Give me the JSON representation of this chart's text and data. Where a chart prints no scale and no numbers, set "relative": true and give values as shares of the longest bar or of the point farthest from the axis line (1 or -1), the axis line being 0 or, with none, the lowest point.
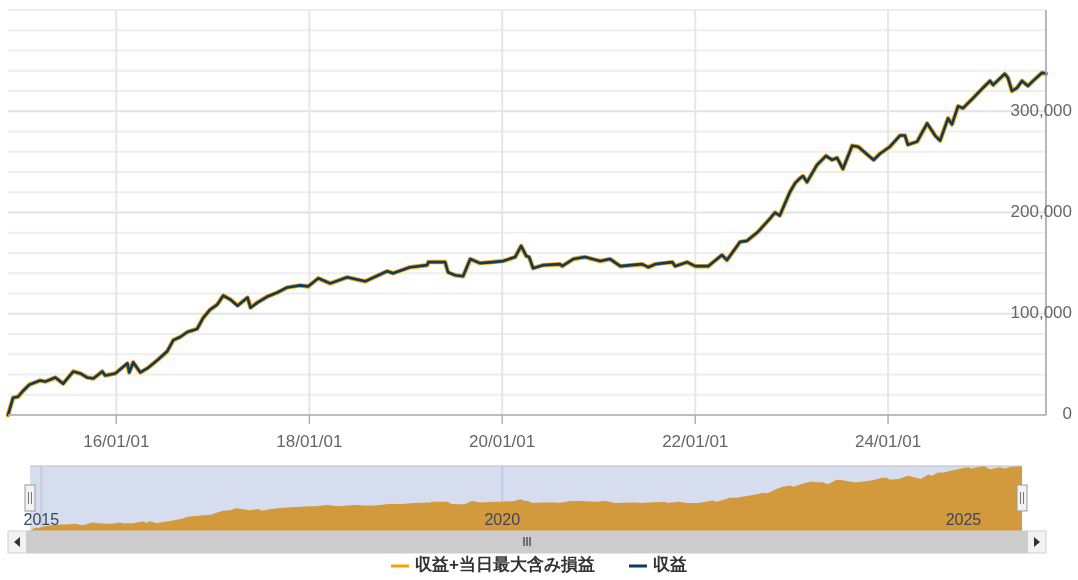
{
  "chart_data": [
    {
      "type": "line",
      "xlim": [
        "2014-11-17",
        "2025-08-21"
      ],
      "ylim": [
        0,
        400000
      ],
      "xticks": [
        {
          "value": "2016-01-01",
          "label": "16/01/01"
        },
        {
          "value": "2018-01-01",
          "label": "18/01/01"
        },
        {
          "value": "2020-01-01",
          "label": "20/01/01"
        },
        {
          "value": "2022-01-01",
          "label": "22/01/01"
        },
        {
          "value": "2024-01-01",
          "label": "24/01/01"
        }
      ],
      "yticks": [
        {
          "value": 0,
          "label": "0"
        },
        {
          "value": 20000,
          "label": null
        },
        {
          "value": 40000,
          "label": null
        },
        {
          "value": 60000,
          "label": null
        },
        {
          "value": 80000,
          "label": null
        },
        {
          "value": 100000,
          "label": "100,000"
        },
        {
          "value": 120000,
          "label": null
        },
        {
          "value": 140000,
          "label": null
        },
        {
          "value": 160000,
          "label": null
        },
        {
          "value": 180000,
          "label": null
        },
        {
          "value": 200000,
          "label": "200,000"
        },
        {
          "value": 220000,
          "label": null
        },
        {
          "value": 240000,
          "label": null
        },
        {
          "value": 260000,
          "label": null
        },
        {
          "value": 280000,
          "label": null
        },
        {
          "value": 300000,
          "label": "300,000"
        },
        {
          "value": 320000,
          "label": null
        },
        {
          "value": 340000,
          "label": null
        },
        {
          "value": 360000,
          "label": null
        },
        {
          "value": 380000,
          "label": null
        },
        {
          "value": 400000,
          "label": null
        }
      ],
      "grid": true,
      "legend": "bottom",
      "x": [
        "2014-11-17",
        "2014-12-06",
        "2014-12-25",
        "2015-01-10",
        "2015-02-06",
        "2015-03-18",
        "2015-04-07",
        "2015-05-15",
        "2015-06-14",
        "2015-07-22",
        "2015-08-18",
        "2015-09-13",
        "2015-10-06",
        "2015-11-09",
        "2015-11-20",
        "2015-12-28",
        "2016-02-12",
        "2016-02-19",
        "2016-03-05",
        "2016-04-01",
        "2016-04-27",
        "2016-06-04",
        "2016-07-12",
        "2016-08-04",
        "2016-08-30",
        "2016-09-26",
        "2016-11-02",
        "2016-11-25",
        "2016-12-21",
        "2017-01-17",
        "2017-02-09",
        "2017-03-08",
        "2017-04-04",
        "2017-05-12",
        "2017-05-23",
        "2017-06-18",
        "2017-07-26",
        "2017-09-02",
        "2017-10-09",
        "2017-11-27",
        "2017-12-27",
        "2018-02-04",
        "2018-03-21",
        "2018-05-24",
        "2018-07-31",
        "2018-10-22",
        "2018-11-14",
        "2019-01-17",
        "2019-03-23",
        "2019-03-27",
        "2019-05-30",
        "2019-06-10",
        "2019-07-07",
        "2019-08-06",
        "2019-09-02",
        "2019-10-09",
        "2019-11-27",
        "2020-01-04",
        "2020-02-19",
        "2020-03-13",
        "2020-04-01",
        "2020-04-12",
        "2020-04-27",
        "2020-06-04",
        "2020-08-07",
        "2020-08-15",
        "2020-09-26",
        "2020-11-10",
        "2021-01-06",
        "2021-02-13",
        "2021-03-23",
        "2021-06-14",
        "2021-07-07",
        "2021-08-03",
        "2021-10-06",
        "2021-10-17",
        "2021-12-01",
        "2022-01-01",
        "2022-02-19",
        "2022-04-12",
        "2022-05-01",
        "2022-06-20",
        "2022-07-16",
        "2022-08-27",
        "2022-10-11",
        "2022-10-30",
        "2022-11-17",
        "2022-12-25",
        "2023-01-14",
        "2023-02-02",
        "2023-02-13",
        "2023-02-28",
        "2023-04-07",
        "2023-05-11",
        "2023-06-03",
        "2023-06-22",
        "2023-07-14",
        "2023-08-18",
        "2023-09-10",
        "2023-10-24",
        "2023-11-08",
        "2023-12-01",
        "2024-01-08",
        "2024-02-15",
        "2024-03-05",
        "2024-03-16",
        "2024-04-20",
        "2024-05-28",
        "2024-06-27",
        "2024-07-16",
        "2024-08-15",
        "2024-08-30",
        "2024-09-22",
        "2024-10-11",
        "2024-10-26",
        "2024-11-18",
        "2024-12-25",
        "2025-01-21",
        "2025-02-02",
        "2025-03-18",
        "2025-03-30",
        "2025-04-14",
        "2025-05-03",
        "2025-05-22",
        "2025-06-14",
        "2025-07-03",
        "2025-08-06",
        "2025-08-21"
      ],
      "series": [
        {
          "name": "収益+当日最大含み損益",
          "color": "#f5a300",
          "values": [
            0,
            17000,
            18000,
            23000,
            30000,
            34000,
            33000,
            37000,
            31000,
            43000,
            41000,
            37000,
            36000,
            43000,
            39000,
            41000,
            51000,
            42000,
            52000,
            42000,
            46000,
            54000,
            63000,
            74000,
            77000,
            82000,
            85000,
            96000,
            104000,
            109000,
            118000,
            114000,
            108000,
            116000,
            106000,
            111000,
            117000,
            121000,
            126000,
            128000,
            127000,
            135000,
            130000,
            136000,
            132000,
            142000,
            140000,
            146000,
            148000,
            151000,
            151000,
            141000,
            138000,
            137000,
            154000,
            150000,
            151000,
            152000,
            156000,
            167000,
            157000,
            156000,
            145000,
            148000,
            149000,
            147000,
            154000,
            156000,
            152000,
            154000,
            147000,
            149000,
            146000,
            149000,
            151000,
            147000,
            151000,
            147000,
            147000,
            158000,
            153000,
            171000,
            172000,
            181000,
            194000,
            200000,
            197000,
            220000,
            229000,
            234000,
            236000,
            230000,
            247000,
            256000,
            252000,
            254000,
            243000,
            266000,
            265000,
            255000,
            252000,
            258000,
            265000,
            276000,
            276000,
            267000,
            270000,
            288000,
            276000,
            271000,
            293000,
            287000,
            305000,
            303000,
            307000,
            313000,
            323000,
            330000,
            326000,
            337000,
            333000,
            320000,
            323000,
            330000,
            325000,
            330000,
            338000,
            337000
          ]
        },
        {
          "name": "収益",
          "color": "#0d3a63",
          "values": [
            0,
            17000,
            18000,
            23000,
            30000,
            34000,
            33000,
            37000,
            31000,
            43000,
            41000,
            37000,
            36000,
            43000,
            39000,
            41000,
            51000,
            42000,
            52000,
            42000,
            46000,
            54000,
            63000,
            74000,
            77000,
            82000,
            85000,
            96000,
            104000,
            109000,
            118000,
            114000,
            108000,
            116000,
            106000,
            111000,
            117000,
            121000,
            126000,
            128000,
            127000,
            135000,
            130000,
            136000,
            132000,
            142000,
            140000,
            146000,
            148000,
            151000,
            151000,
            141000,
            138000,
            137000,
            154000,
            150000,
            151000,
            152000,
            156000,
            167000,
            157000,
            156000,
            145000,
            148000,
            149000,
            147000,
            154000,
            156000,
            152000,
            154000,
            147000,
            149000,
            146000,
            149000,
            151000,
            147000,
            151000,
            147000,
            147000,
            158000,
            153000,
            171000,
            172000,
            181000,
            194000,
            200000,
            197000,
            220000,
            229000,
            234000,
            236000,
            230000,
            247000,
            256000,
            252000,
            254000,
            243000,
            266000,
            265000,
            255000,
            252000,
            258000,
            265000,
            276000,
            276000,
            267000,
            270000,
            288000,
            276000,
            271000,
            293000,
            287000,
            305000,
            303000,
            307000,
            313000,
            323000,
            330000,
            326000,
            337000,
            333000,
            320000,
            323000,
            330000,
            325000,
            330000,
            338000,
            337000
          ]
        }
      ]
    },
    {
      "type": "area",
      "relative": true,
      "grid": "x",
      "xlim": [
        "2014-11-17",
        "2025-08-21"
      ],
      "xticks": [
        {
          "value": "2015-01-01",
          "label": "2015"
        },
        {
          "value": "2020-01-01",
          "label": "2020"
        },
        {
          "value": "2025-01-01",
          "label": "2025"
        }
      ],
      "x": [
        "2014-11-17",
        "2014-12-06",
        "2014-12-25",
        "2015-01-10",
        "2015-02-06",
        "2015-03-18",
        "2015-04-07",
        "2015-05-15",
        "2015-06-14",
        "2015-07-22",
        "2015-08-18",
        "2015-09-13",
        "2015-10-06",
        "2015-11-09",
        "2015-11-20",
        "2015-12-28",
        "2016-02-12",
        "2016-02-19",
        "2016-03-05",
        "2016-04-01",
        "2016-04-27",
        "2016-06-04",
        "2016-07-12",
        "2016-08-04",
        "2016-08-30",
        "2016-09-26",
        "2016-11-02",
        "2016-11-25",
        "2016-12-21",
        "2017-01-17",
        "2017-02-09",
        "2017-03-08",
        "2017-04-04",
        "2017-05-12",
        "2017-05-23",
        "2017-06-18",
        "2017-07-26",
        "2017-09-02",
        "2017-10-09",
        "2017-11-27",
        "2017-12-27",
        "2018-02-04",
        "2018-03-21",
        "2018-05-24",
        "2018-07-31",
        "2018-10-22",
        "2018-11-14",
        "2019-01-17",
        "2019-03-23",
        "2019-03-27",
        "2019-05-30",
        "2019-06-10",
        "2019-07-07",
        "2019-08-06",
        "2019-09-02",
        "2019-10-09",
        "2019-11-27",
        "2020-01-04",
        "2020-02-19",
        "2020-03-13",
        "2020-04-01",
        "2020-04-12",
        "2020-04-27",
        "2020-06-04",
        "2020-08-07",
        "2020-08-15",
        "2020-09-26",
        "2020-11-10",
        "2021-01-06",
        "2021-02-13",
        "2021-03-23",
        "2021-06-14",
        "2021-07-07",
        "2021-08-03",
        "2021-10-06",
        "2021-10-17",
        "2021-12-01",
        "2022-01-01",
        "2022-02-19",
        "2022-04-12",
        "2022-05-01",
        "2022-06-20",
        "2022-07-16",
        "2022-08-27",
        "2022-10-11",
        "2022-10-30",
        "2022-11-17",
        "2022-12-25",
        "2023-01-14",
        "2023-02-02",
        "2023-02-13",
        "2023-02-28",
        "2023-04-07",
        "2023-05-11",
        "2023-06-03",
        "2023-06-22",
        "2023-07-14",
        "2023-08-18",
        "2023-09-10",
        "2023-10-24",
        "2023-11-08",
        "2023-12-01",
        "2024-01-08",
        "2024-02-15",
        "2024-03-05",
        "2024-03-16",
        "2024-04-20",
        "2024-05-28",
        "2024-06-27",
        "2024-07-16",
        "2024-08-15",
        "2024-08-30",
        "2024-09-22",
        "2024-10-11",
        "2024-10-26",
        "2024-11-18",
        "2024-12-25",
        "2025-01-21",
        "2025-02-02",
        "2025-03-18",
        "2025-03-30",
        "2025-04-14",
        "2025-05-03",
        "2025-05-22",
        "2025-06-14",
        "2025-07-03",
        "2025-08-06",
        "2025-08-21"
      ],
      "series": [
        {
          "color": "#d29a3c",
          "values": [
            0,
            0.05,
            0.05,
            0.07,
            0.09,
            0.1,
            0.1,
            0.11,
            0.09,
            0.13,
            0.12,
            0.11,
            0.11,
            0.13,
            0.12,
            0.12,
            0.15,
            0.12,
            0.15,
            0.12,
            0.14,
            0.16,
            0.19,
            0.22,
            0.23,
            0.24,
            0.25,
            0.28,
            0.31,
            0.32,
            0.35,
            0.34,
            0.32,
            0.34,
            0.31,
            0.33,
            0.35,
            0.36,
            0.37,
            0.38,
            0.38,
            0.4,
            0.38,
            0.4,
            0.39,
            0.42,
            0.41,
            0.43,
            0.44,
            0.45,
            0.45,
            0.42,
            0.41,
            0.41,
            0.46,
            0.44,
            0.45,
            0.45,
            0.46,
            0.49,
            0.46,
            0.46,
            0.43,
            0.44,
            0.44,
            0.43,
            0.46,
            0.46,
            0.45,
            0.46,
            0.43,
            0.44,
            0.43,
            0.44,
            0.45,
            0.43,
            0.45,
            0.43,
            0.43,
            0.47,
            0.45,
            0.51,
            0.51,
            0.54,
            0.57,
            0.59,
            0.58,
            0.65,
            0.68,
            0.69,
            0.7,
            0.68,
            0.73,
            0.76,
            0.75,
            0.75,
            0.72,
            0.79,
            0.78,
            0.75,
            0.75,
            0.76,
            0.78,
            0.82,
            0.82,
            0.79,
            0.8,
            0.85,
            0.82,
            0.8,
            0.87,
            0.85,
            0.9,
            0.9,
            0.91,
            0.93,
            0.96,
            0.98,
            0.96,
            1.0,
            0.99,
            0.95,
            0.96,
            0.98,
            0.96,
            0.98,
            1,
            1.0
          ]
        }
      ]
    }
  ]
}
